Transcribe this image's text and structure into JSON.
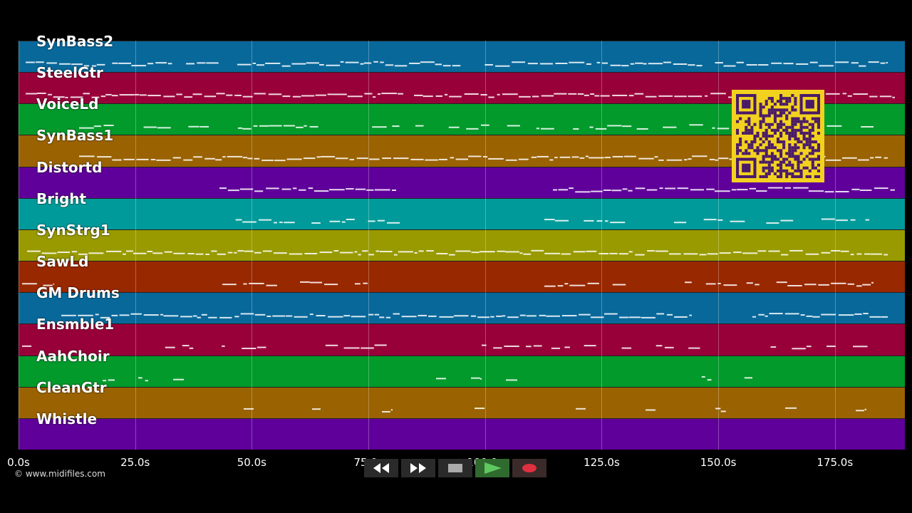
{
  "tracks": [
    {
      "name": "SynBass2",
      "color": "#08689a"
    },
    {
      "name": "SteelGtr",
      "color": "#98003a"
    },
    {
      "name": "VoiceLd",
      "color": "#019a2b"
    },
    {
      "name": "SynBass1",
      "color": "#9a6200"
    },
    {
      "name": "Distortd",
      "color": "#5f009a"
    },
    {
      "name": "Bright",
      "color": "#009a9a"
    },
    {
      "name": "SynStrg1",
      "color": "#989a00"
    },
    {
      "name": "SawLd",
      "color": "#982800"
    },
    {
      "name": "GM Drums",
      "color": "#08689a"
    },
    {
      "name": "Ensmble1",
      "color": "#98003a"
    },
    {
      "name": "AahChoir",
      "color": "#019a2b"
    },
    {
      "name": "CleanGtr",
      "color": "#9a6200"
    },
    {
      "name": "Whistle",
      "color": "#5f009a"
    }
  ],
  "time_axis": {
    "max_seconds": 190,
    "ticks": [
      "0.0s",
      "25.0s",
      "50.0s",
      "75.0s",
      "100.0s",
      "125.0s",
      "150.0s",
      "175.0s"
    ],
    "tick_values": [
      0,
      25,
      50,
      75,
      100,
      125,
      150,
      175
    ]
  },
  "copyright": "© www.midifiles.com",
  "transport": {
    "buttons": [
      {
        "name": "rewind-button",
        "icon": "rewind-icon",
        "glyph": "◀◀"
      },
      {
        "name": "fast-forward-button",
        "icon": "fast-forward-icon",
        "glyph": "▶▶"
      },
      {
        "name": "stop-button",
        "icon": "stop-icon",
        "glyph": "■"
      },
      {
        "name": "play-button",
        "icon": "play-icon",
        "glyph": "▶"
      },
      {
        "name": "record-button",
        "icon": "record-icon",
        "glyph": "●"
      }
    ]
  },
  "colors": {
    "background": "#000000",
    "note": "#ffffff",
    "qr_background": "#f2d21e",
    "qr_module": "#4a1a6a"
  }
}
